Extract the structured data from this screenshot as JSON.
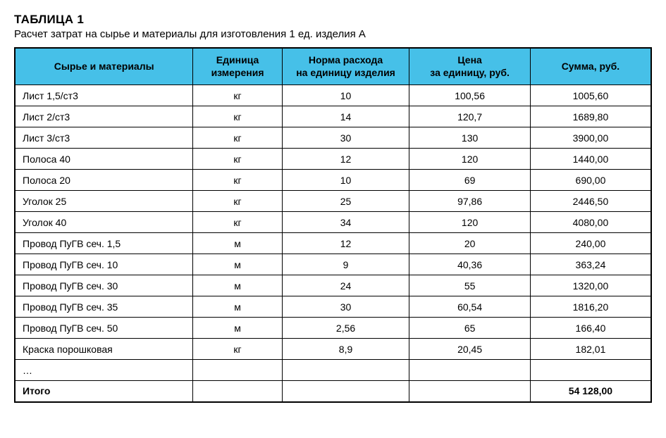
{
  "header": {
    "table_number": "ТАБЛИЦА 1",
    "caption": "Расчет затрат на сырье и материалы для изготовления 1 ед. изделия А"
  },
  "table": {
    "columns": [
      "Сырье и материалы",
      "Единица\nизмерения",
      "Норма расхода\nна единицу изделия",
      "Цена\nза единицу, руб.",
      "Сумма, руб."
    ],
    "rows": [
      [
        "Лист 1,5/ст3",
        "кг",
        "10",
        "100,56",
        "1005,60"
      ],
      [
        "Лист 2/ст3",
        "кг",
        "14",
        "120,7",
        "1689,80"
      ],
      [
        "Лист 3/ст3",
        "кг",
        "30",
        "130",
        "3900,00"
      ],
      [
        "Полоса 40",
        "кг",
        "12",
        "120",
        "1440,00"
      ],
      [
        "Полоса 20",
        "кг",
        "10",
        "69",
        "690,00"
      ],
      [
        "Уголок 25",
        "кг",
        "25",
        "97,86",
        "2446,50"
      ],
      [
        "Уголок 40",
        "кг",
        "34",
        "120",
        "4080,00"
      ],
      [
        "Провод ПуГВ сеч. 1,5",
        "м",
        "12",
        "20",
        "240,00"
      ],
      [
        "Провод ПуГВ сеч. 10",
        "м",
        "9",
        "40,36",
        "363,24"
      ],
      [
        "Провод ПуГВ сеч. 30",
        "м",
        "24",
        "55",
        "1320,00"
      ],
      [
        "Провод ПуГВ сеч. 35",
        "м",
        "30",
        "60,54",
        "1816,20"
      ],
      [
        "Провод ПуГВ сеч. 50",
        "м",
        "2,56",
        "65",
        "166,40"
      ],
      [
        "Краска порошковая",
        "кг",
        "8,9",
        "20,45",
        "182,01"
      ],
      [
        "…",
        "",
        "",
        "",
        ""
      ]
    ],
    "total_row": [
      "Итого",
      "",
      "",
      "",
      "54 128,00"
    ],
    "header_bg": "#46c0e8",
    "border_color": "#000000",
    "font_family": "Arial Narrow",
    "header_fontsize": 14,
    "body_fontsize": 14,
    "column_widths_pct": [
      28,
      14,
      20,
      19,
      19
    ]
  }
}
